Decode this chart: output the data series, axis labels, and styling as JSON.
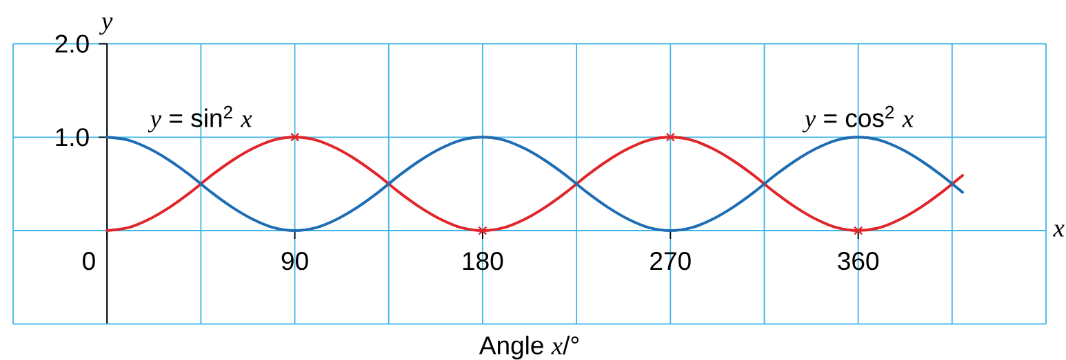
{
  "chart_data": {
    "type": "line",
    "xlabel": "Angle *x*/°",
    "ylabel": "y",
    "annotations": [
      "x"
    ],
    "x": [
      0,
      10,
      20,
      30,
      40,
      50,
      60,
      70,
      80,
      90,
      100,
      110,
      120,
      130,
      140,
      150,
      160,
      170,
      180,
      190,
      200,
      210,
      220,
      230,
      240,
      250,
      260,
      270,
      280,
      290,
      300,
      310,
      320,
      330,
      340,
      350,
      360,
      370,
      380,
      390,
      400,
      410
    ],
    "series": [
      {
        "name": "*y* = sin$^{2}$ *x*",
        "color": "#e0262b",
        "values": [
          0,
          0.03,
          0.12,
          0.25,
          0.41,
          0.59,
          0.75,
          0.88,
          0.97,
          1,
          0.97,
          0.88,
          0.75,
          0.59,
          0.41,
          0.25,
          0.12,
          0.03,
          0,
          0.03,
          0.12,
          0.25,
          0.41,
          0.59,
          0.75,
          0.88,
          0.97,
          1,
          0.97,
          0.88,
          0.75,
          0.59,
          0.41,
          0.25,
          0.12,
          0.03,
          0,
          0.03,
          0.12,
          0.25,
          0.41,
          0.59
        ]
      },
      {
        "name": "*y* = cos$^{2}$ *x*",
        "color": "#1e6db4",
        "values": [
          1,
          0.97,
          0.88,
          0.75,
          0.59,
          0.41,
          0.25,
          0.12,
          0.03,
          0,
          0.03,
          0.12,
          0.25,
          0.41,
          0.59,
          0.75,
          0.88,
          0.97,
          1,
          0.97,
          0.88,
          0.75,
          0.59,
          0.41,
          0.25,
          0.12,
          0.03,
          0,
          0.03,
          0.12,
          0.25,
          0.41,
          0.59,
          0.75,
          0.88,
          0.97,
          1,
          0.97,
          0.88,
          0.75,
          0.59,
          0.41
        ]
      },
      {
        "type": "scatter",
        "color": "#e0262b",
        "marker": "cross",
        "x": [
          90,
          180,
          270,
          360
        ],
        "values": [
          1,
          0,
          1,
          0
        ]
      }
    ],
    "xlim": [
      -45,
      450
    ],
    "ylim": [
      -1,
      2
    ],
    "xticks": [
      {
        "value": -45,
        "label": null
      },
      {
        "value": 0,
        "label": "0"
      },
      {
        "value": 45,
        "label": null
      },
      90,
      {
        "value": 135,
        "label": null
      },
      180,
      {
        "value": 225,
        "label": null
      },
      270,
      {
        "value": 315,
        "label": null
      },
      360,
      {
        "value": 405,
        "label": null
      },
      {
        "value": 450,
        "label": null
      }
    ],
    "yticks": [
      {
        "value": -1,
        "label": null
      },
      {
        "value": 0,
        "label": null
      },
      {
        "value": 1,
        "label": "1.0"
      },
      {
        "value": 2,
        "label": "2.0"
      }
    ],
    "grid": true
  }
}
